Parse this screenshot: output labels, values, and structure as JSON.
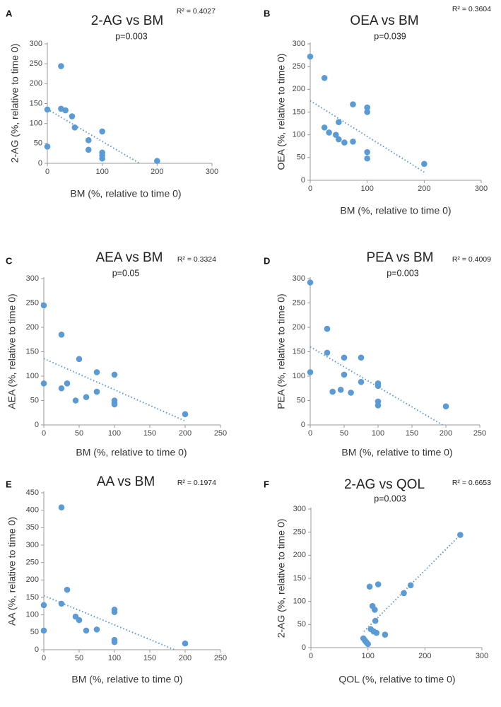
{
  "chart_data": [
    {
      "type": "scatter",
      "panel": "A",
      "title": "2-AG vs BM",
      "p_value": "p=0.003",
      "r2": "R² = 0.4027",
      "xlabel": "BM (%, relative to time 0)",
      "ylabel": "2-AG (%, relative to time 0)",
      "xlim": [
        0,
        300
      ],
      "xticks": [
        0,
        100,
        200,
        300
      ],
      "ylim": [
        0,
        300
      ],
      "yticks": [
        0,
        50,
        100,
        150,
        200,
        250,
        300
      ],
      "trendline": {
        "x": [
          0,
          168
        ],
        "y": [
          136,
          0
        ]
      },
      "points": [
        [
          0,
          135
        ],
        [
          0,
          42
        ],
        [
          25,
          244
        ],
        [
          25,
          137
        ],
        [
          33,
          133
        ],
        [
          45,
          118
        ],
        [
          50,
          90
        ],
        [
          75,
          58
        ],
        [
          75,
          34
        ],
        [
          100,
          80
        ],
        [
          100,
          27
        ],
        [
          100,
          20
        ],
        [
          100,
          12
        ],
        [
          200,
          6
        ]
      ]
    },
    {
      "type": "scatter",
      "panel": "B",
      "title": "OEA vs BM",
      "p_value": "p=0.039",
      "r2": "R² = 0.3604",
      "xlabel": "BM (%, relative to time 0)",
      "ylabel": "OEA (%, relative to time 0)",
      "xlim": [
        0,
        300
      ],
      "xticks": [
        0,
        100,
        200,
        300
      ],
      "ylim": [
        0,
        300
      ],
      "yticks": [
        0,
        50,
        100,
        150,
        200,
        250,
        300
      ],
      "trendline": {
        "x": [
          0,
          200
        ],
        "y": [
          175,
          18
        ]
      },
      "points": [
        [
          0,
          272
        ],
        [
          25,
          225
        ],
        [
          25,
          116
        ],
        [
          33,
          105
        ],
        [
          45,
          100
        ],
        [
          50,
          128
        ],
        [
          50,
          90
        ],
        [
          60,
          83
        ],
        [
          75,
          167
        ],
        [
          75,
          85
        ],
        [
          100,
          160
        ],
        [
          100,
          150
        ],
        [
          100,
          62
        ],
        [
          100,
          48
        ],
        [
          200,
          36
        ]
      ]
    },
    {
      "type": "scatter",
      "panel": "C",
      "title": "AEA vs BM",
      "p_value": "p=0.05",
      "r2": "R² = 0.3324",
      "xlabel": "BM (%, relative to time 0)",
      "ylabel": "AEA (%, relative to time 0)",
      "xlim": [
        0,
        250
      ],
      "xticks": [
        0,
        50,
        100,
        150,
        200,
        250
      ],
      "ylim": [
        0,
        300
      ],
      "yticks": [
        0,
        50,
        100,
        150,
        200,
        250,
        300
      ],
      "trendline": {
        "x": [
          0,
          200
        ],
        "y": [
          136,
          8
        ]
      },
      "points": [
        [
          0,
          245
        ],
        [
          0,
          85
        ],
        [
          25,
          185
        ],
        [
          25,
          75
        ],
        [
          33,
          85
        ],
        [
          45,
          50
        ],
        [
          50,
          135
        ],
        [
          60,
          57
        ],
        [
          75,
          108
        ],
        [
          75,
          68
        ],
        [
          100,
          103
        ],
        [
          100,
          50
        ],
        [
          100,
          45
        ],
        [
          100,
          42
        ],
        [
          200,
          22
        ]
      ]
    },
    {
      "type": "scatter",
      "panel": "D",
      "title": "PEA vs BM",
      "p_value": "p=0.003",
      "r2": "R² = 0.4009",
      "xlabel": "BM (%, relative to time 0)",
      "ylabel": "PEA (%, relative to time 0)",
      "xlim": [
        0,
        250
      ],
      "xticks": [
        0,
        50,
        100,
        150,
        200,
        250
      ],
      "ylim": [
        0,
        300
      ],
      "yticks": [
        0,
        50,
        100,
        150,
        200,
        250,
        300
      ],
      "trendline": {
        "x": [
          0,
          195
        ],
        "y": [
          160,
          0
        ]
      },
      "points": [
        [
          0,
          292
        ],
        [
          0,
          108
        ],
        [
          25,
          197
        ],
        [
          25,
          148
        ],
        [
          33,
          68
        ],
        [
          45,
          72
        ],
        [
          50,
          138
        ],
        [
          50,
          103
        ],
        [
          60,
          66
        ],
        [
          75,
          138
        ],
        [
          75,
          88
        ],
        [
          100,
          85
        ],
        [
          100,
          80
        ],
        [
          100,
          48
        ],
        [
          100,
          40
        ],
        [
          200,
          38
        ]
      ]
    },
    {
      "type": "scatter",
      "panel": "E",
      "title": "AA vs BM",
      "p_value": "",
      "r2": "R² = 0.1974",
      "xlabel": "BM (%, relative to time 0)",
      "ylabel": "AA (%, relative to time 0)",
      "xlim": [
        0,
        250
      ],
      "xticks": [
        0,
        50,
        100,
        150,
        200,
        250
      ],
      "ylim": [
        0,
        450
      ],
      "yticks": [
        0,
        50,
        100,
        150,
        200,
        250,
        300,
        350,
        400,
        450
      ],
      "trendline": {
        "x": [
          0,
          185
        ],
        "y": [
          155,
          0
        ]
      },
      "points": [
        [
          0,
          128
        ],
        [
          0,
          55
        ],
        [
          25,
          408
        ],
        [
          25,
          132
        ],
        [
          33,
          172
        ],
        [
          45,
          95
        ],
        [
          50,
          85
        ],
        [
          60,
          55
        ],
        [
          75,
          58
        ],
        [
          100,
          115
        ],
        [
          100,
          108
        ],
        [
          100,
          28
        ],
        [
          100,
          22
        ],
        [
          200,
          18
        ]
      ]
    },
    {
      "type": "scatter",
      "panel": "F",
      "title": "2-AG vs QOL",
      "p_value": "p=0.003",
      "r2": "R² = 0.6653",
      "xlabel": "QOL (%, relative to time 0)",
      "ylabel": "2-AG (%, relative to time 0)",
      "xlim": [
        0,
        300
      ],
      "xticks": [
        0,
        100,
        200,
        300
      ],
      "ylim": [
        0,
        300
      ],
      "yticks": [
        0,
        50,
        100,
        150,
        200,
        250,
        300
      ],
      "trendline": {
        "x": [
          93,
          262
        ],
        "y": [
          35,
          244
        ]
      },
      "points": [
        [
          92,
          20
        ],
        [
          95,
          15
        ],
        [
          97,
          12
        ],
        [
          100,
          8
        ],
        [
          103,
          132
        ],
        [
          105,
          40
        ],
        [
          108,
          90
        ],
        [
          110,
          35
        ],
        [
          112,
          82
        ],
        [
          113,
          58
        ],
        [
          115,
          32
        ],
        [
          118,
          137
        ],
        [
          130,
          28
        ],
        [
          163,
          118
        ],
        [
          175,
          135
        ],
        [
          262,
          244
        ]
      ]
    }
  ]
}
